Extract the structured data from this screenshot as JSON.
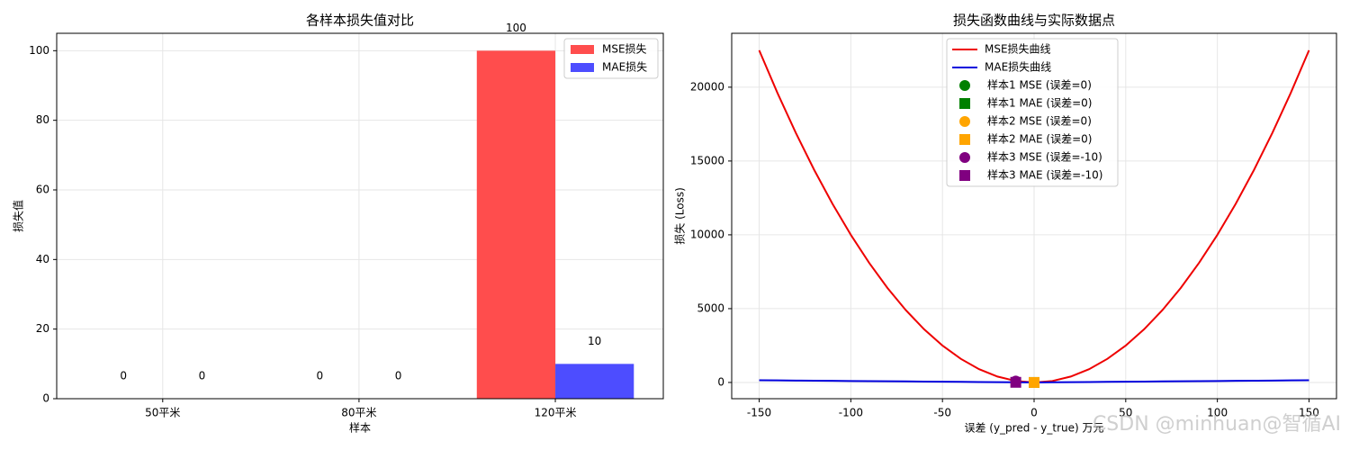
{
  "chart_data": [
    {
      "type": "bar",
      "title": "各样本损失值对比",
      "xlabel": "样本",
      "ylabel": "损失值",
      "categories": [
        "50平米",
        "80平米",
        "120平米"
      ],
      "series": [
        {
          "name": "MSE损失",
          "color": "#ff4d4d",
          "values": [
            0,
            0,
            100
          ]
        },
        {
          "name": "MAE损失",
          "color": "#4d4dff",
          "values": [
            0,
            0,
            10
          ]
        }
      ],
      "ylim": [
        0,
        105
      ],
      "yticks": [
        0,
        20,
        40,
        60,
        80,
        100
      ],
      "grid": true,
      "legend": "upper right"
    },
    {
      "type": "line",
      "title": "损失函数曲线与实际数据点",
      "xlabel": "误差 (y_pred - y_true) 万元",
      "ylabel": "损失 (Loss)",
      "x": [
        -150,
        -140,
        -130,
        -120,
        -110,
        -100,
        -90,
        -80,
        -70,
        -60,
        -50,
        -40,
        -30,
        -20,
        -10,
        0,
        10,
        20,
        30,
        40,
        50,
        60,
        70,
        80,
        90,
        100,
        110,
        120,
        130,
        140,
        150
      ],
      "series": [
        {
          "name": "MSE损失曲线",
          "color": "#ee0000",
          "values": [
            22500,
            19600,
            16900,
            14400,
            12100,
            10000,
            8100,
            6400,
            4900,
            3600,
            2500,
            1600,
            900,
            400,
            100,
            0,
            100,
            400,
            900,
            1600,
            2500,
            3600,
            4900,
            6400,
            8100,
            10000,
            12100,
            14400,
            16900,
            19600,
            22500
          ]
        },
        {
          "name": "MAE损失曲线",
          "color": "#0000dd",
          "values": [
            150,
            140,
            130,
            120,
            110,
            100,
            90,
            80,
            70,
            60,
            50,
            40,
            30,
            20,
            10,
            0,
            10,
            20,
            30,
            40,
            50,
            60,
            70,
            80,
            90,
            100,
            110,
            120,
            130,
            140,
            150
          ]
        }
      ],
      "points": [
        {
          "name": "样本1 MSE (误差=0)",
          "color": "green",
          "marker": "circle",
          "x": [
            0
          ],
          "values": [
            0
          ]
        },
        {
          "name": "样本1 MAE (误差=0)",
          "color": "green",
          "marker": "square",
          "x": [
            0
          ],
          "values": [
            0
          ]
        },
        {
          "name": "样本2 MSE (误差=0)",
          "color": "orange",
          "marker": "circle",
          "x": [
            0
          ],
          "values": [
            0
          ]
        },
        {
          "name": "样本2 MAE (误差=0)",
          "color": "orange",
          "marker": "square",
          "x": [
            0
          ],
          "values": [
            0
          ]
        },
        {
          "name": "样本3 MSE (误差=-10)",
          "color": "purple",
          "marker": "circle",
          "x": [
            -10
          ],
          "values": [
            100
          ]
        },
        {
          "name": "样本3 MAE (误差=-10)",
          "color": "purple",
          "marker": "square",
          "x": [
            -10
          ],
          "values": [
            10
          ]
        }
      ],
      "xlim": [
        -165,
        165
      ],
      "xticks": [
        -150,
        -100,
        -50,
        0,
        50,
        100,
        150
      ],
      "ylim": [
        -1100,
        23650
      ],
      "yticks": [
        0,
        5000,
        10000,
        15000,
        20000
      ],
      "grid": true,
      "legend": "upper center"
    }
  ],
  "watermark": "CSDN @minhuan@智循AI"
}
